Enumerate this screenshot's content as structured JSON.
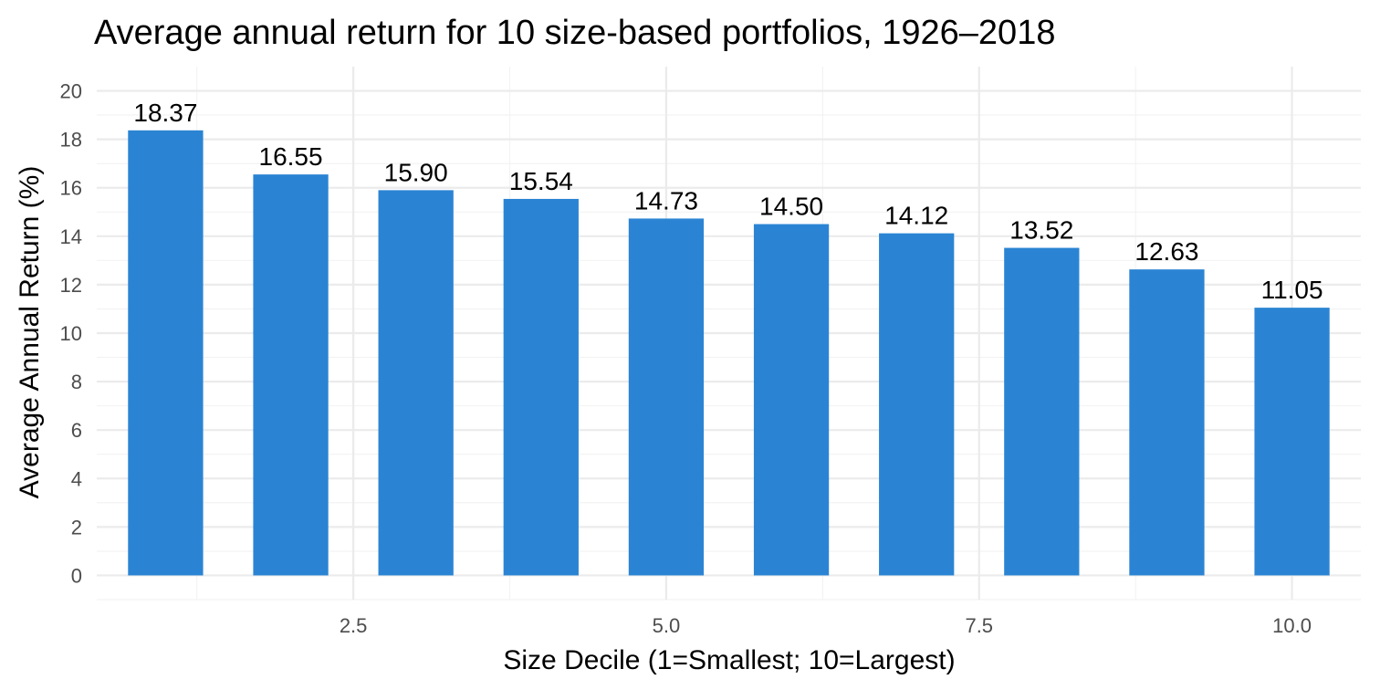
{
  "chart_data": {
    "type": "bar",
    "title": "Average annual return for 10 size-based portfolios, 1926–2018",
    "xlabel": "Size Decile (1=Smallest; 10=Largest)",
    "ylabel": "Average Annual Return (%)",
    "x": [
      1,
      2,
      3,
      4,
      5,
      6,
      7,
      8,
      9,
      10
    ],
    "values": [
      18.37,
      16.55,
      15.9,
      15.54,
      14.73,
      14.5,
      14.12,
      13.52,
      12.63,
      11.05
    ],
    "data_labels": [
      "18.37",
      "16.55",
      "15.90",
      "15.54",
      "14.73",
      "14.50",
      "14.12",
      "13.52",
      "12.63",
      "11.05"
    ],
    "xlim": [
      0.45,
      10.55
    ],
    "ylim": [
      -1,
      21
    ],
    "x_ticks": [
      2.5,
      5.0,
      7.5,
      10.0
    ],
    "x_tick_labels": [
      "2.5",
      "5.0",
      "7.5",
      "10.0"
    ],
    "y_ticks": [
      0,
      2,
      4,
      6,
      8,
      10,
      12,
      14,
      16,
      18,
      20
    ],
    "y_tick_labels": [
      "0",
      "2",
      "4",
      "6",
      "8",
      "10",
      "12",
      "14",
      "16",
      "18",
      "20"
    ],
    "bar_color": "#2b84d3",
    "grid": true,
    "legend": "none"
  }
}
